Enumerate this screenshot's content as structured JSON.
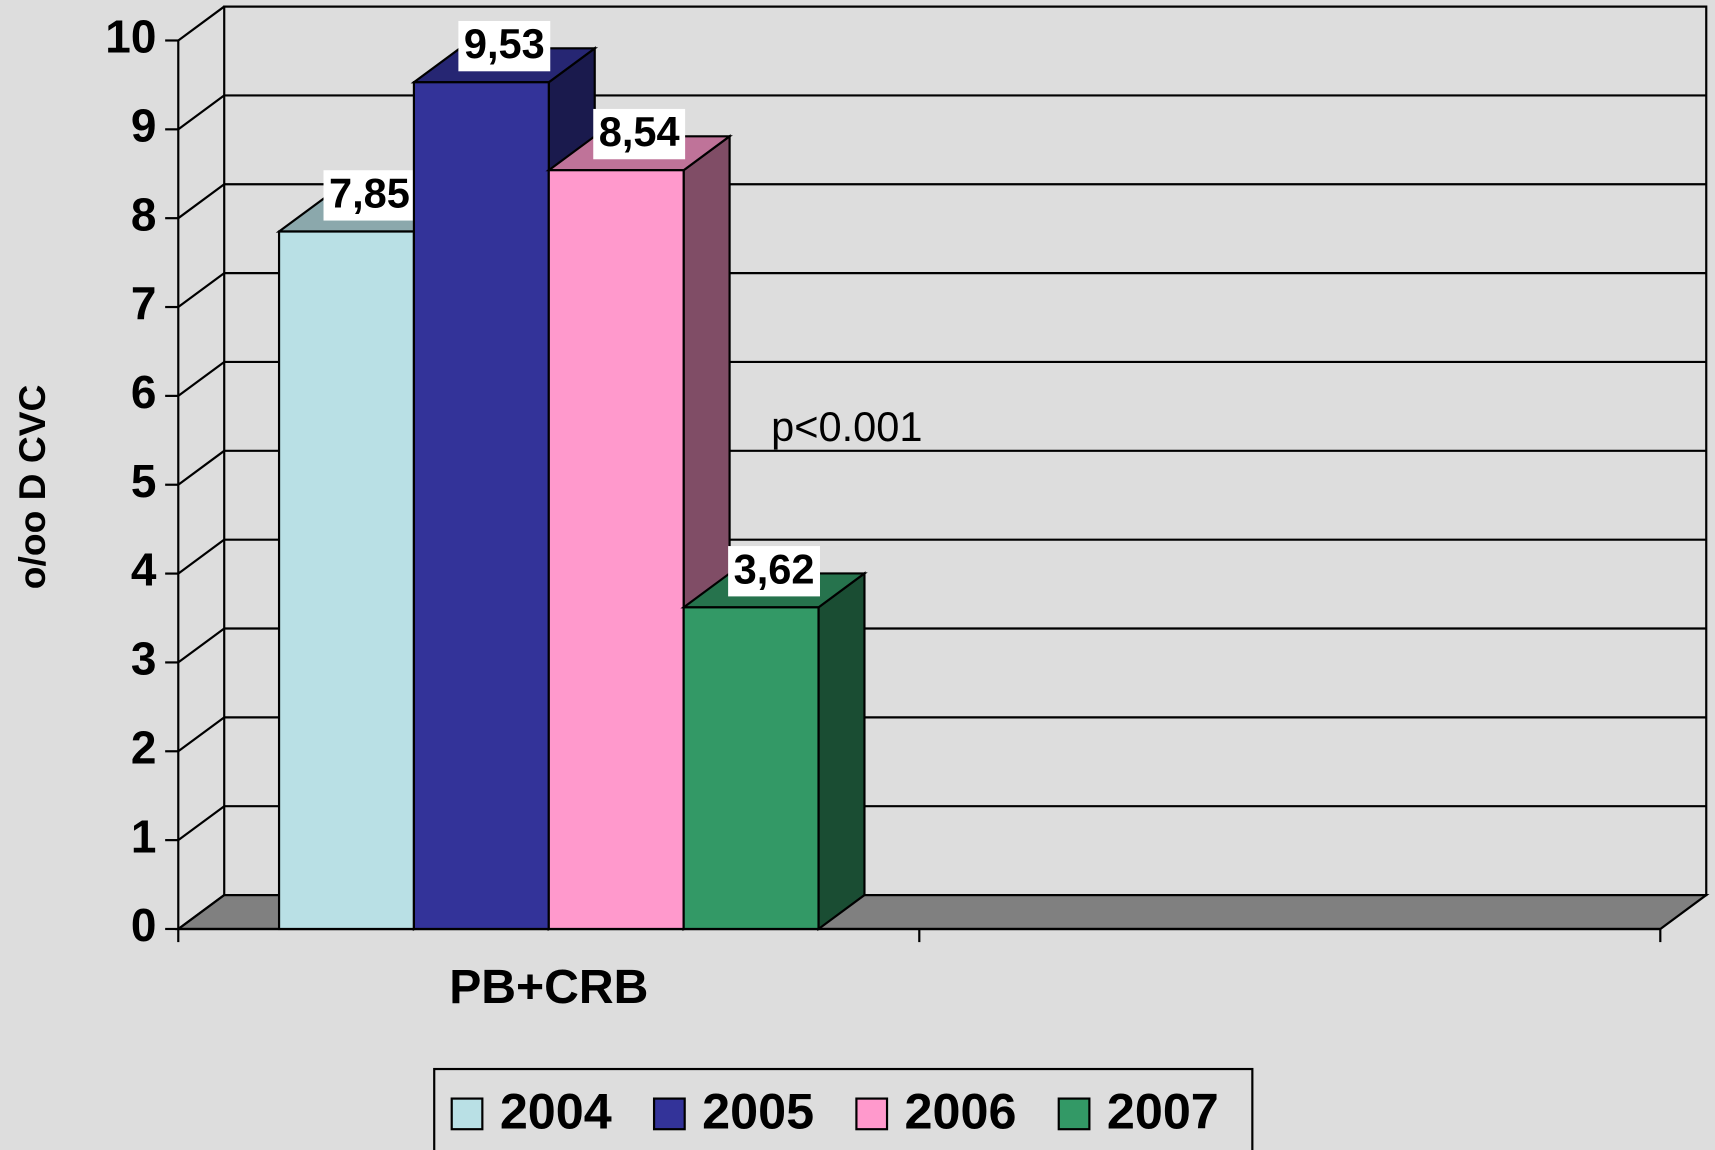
{
  "chart_data": {
    "type": "bar3d",
    "y_label": "o/oo D CVC",
    "annotation": "p<0.001",
    "categories": [
      "PB+CRB",
      null
    ],
    "series": [
      {
        "name": "2004",
        "color": "#b9e0e5",
        "values": [
          7.85,
          null
        ],
        "value_labels": [
          "7,85",
          null
        ]
      },
      {
        "name": "2005",
        "color": "#333399",
        "values": [
          9.53,
          null
        ],
        "value_labels": [
          "9,53",
          null
        ]
      },
      {
        "name": "2006",
        "color": "#ff99cc",
        "values": [
          8.54,
          null
        ],
        "value_labels": [
          "8,54",
          null
        ]
      },
      {
        "name": "2007",
        "color": "#339966",
        "values": [
          3.62,
          null
        ],
        "value_labels": [
          "3,62",
          null
        ]
      }
    ],
    "ylim": [
      0,
      10
    ],
    "yticks": [
      0,
      1,
      2,
      3,
      4,
      5,
      6,
      7,
      8,
      9,
      10
    ],
    "grid": true,
    "legend": "bottom"
  }
}
